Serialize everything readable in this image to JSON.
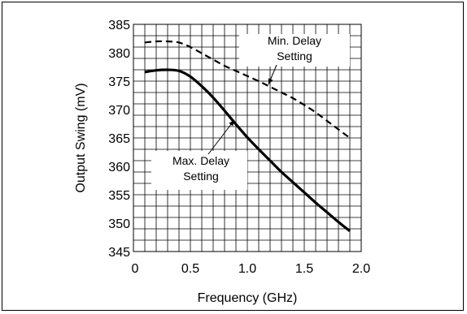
{
  "chart_data": {
    "type": "line",
    "xlabel": "Frequency (GHz)",
    "ylabel": "Output Swing (mV)",
    "xlim": [
      0,
      2.0
    ],
    "ylim": [
      345,
      385
    ],
    "x_ticks": [
      "0",
      "0.5",
      "1.0",
      "1.5",
      "2.0"
    ],
    "y_ticks": [
      "345",
      "350",
      "355",
      "360",
      "365",
      "370",
      "375",
      "380",
      "385"
    ],
    "grid": true,
    "series": [
      {
        "id": "max",
        "style": "solid",
        "x": [
          0.1,
          0.2,
          0.3,
          0.4,
          0.5,
          0.6,
          0.7,
          0.8,
          0.9,
          1.0,
          1.1,
          1.2,
          1.3,
          1.4,
          1.5,
          1.6,
          1.7,
          1.8,
          1.9
        ],
        "y": [
          376.6,
          376.9,
          377.0,
          376.8,
          375.8,
          374.1,
          372.1,
          369.8,
          367.4,
          365.1,
          363.0,
          361.0,
          359.0,
          357.2,
          355.4,
          353.6,
          351.9,
          350.2,
          348.6
        ]
      },
      {
        "id": "min",
        "style": "dashed",
        "x": [
          0.1,
          0.2,
          0.3,
          0.4,
          0.5,
          0.6,
          0.7,
          0.8,
          0.9,
          1.0,
          1.1,
          1.2,
          1.3,
          1.4,
          1.5,
          1.6,
          1.7,
          1.8,
          1.9
        ],
        "y": [
          381.8,
          382.0,
          382.0,
          381.8,
          381.0,
          379.9,
          378.8,
          377.7,
          376.8,
          375.9,
          375.0,
          374.0,
          373.0,
          372.0,
          370.8,
          369.5,
          368.0,
          366.5,
          365.0
        ]
      }
    ],
    "annotations": [
      {
        "lines": [
          "Min. Delay",
          "Setting"
        ],
        "points_to": "min"
      },
      {
        "lines": [
          "Max. Delay",
          "Setting"
        ],
        "points_to": "max"
      }
    ]
  }
}
